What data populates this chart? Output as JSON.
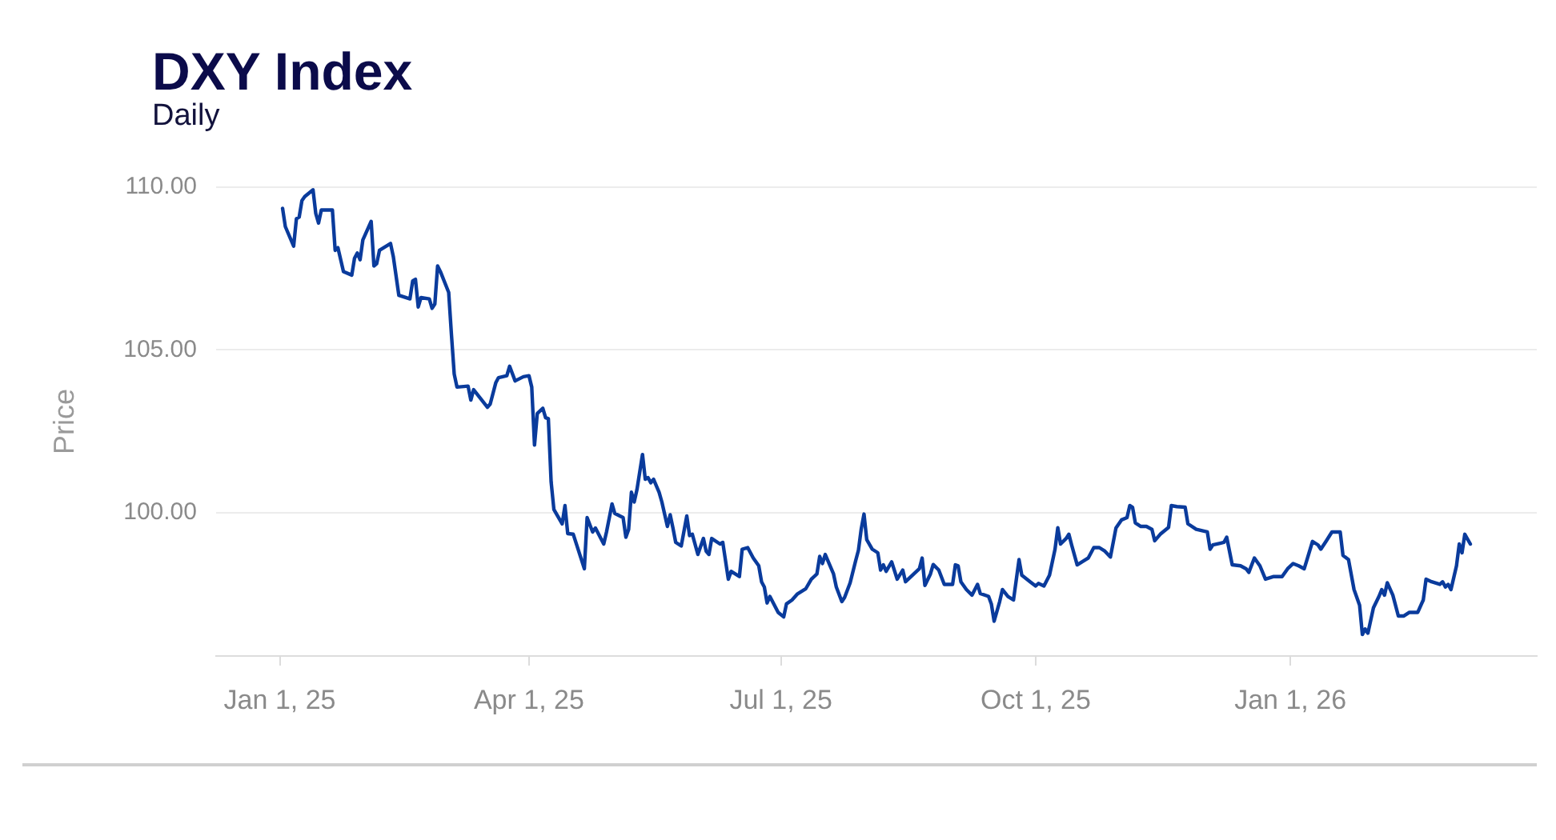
{
  "chart_data": {
    "type": "line",
    "title": "DXY Index",
    "subtitle": "Daily",
    "ylabel": "Price",
    "x": [
      "2025-01-02",
      "2025-01-03",
      "2025-01-06",
      "2025-01-07",
      "2025-01-08",
      "2025-01-09",
      "2025-01-10",
      "2025-01-13",
      "2025-01-14",
      "2025-01-15",
      "2025-01-16",
      "2025-01-20",
      "2025-01-21",
      "2025-01-22",
      "2025-01-24",
      "2025-01-27",
      "2025-01-28",
      "2025-01-29",
      "2025-01-30",
      "2025-01-31",
      "2025-02-03",
      "2025-02-04",
      "2025-02-05",
      "2025-02-06",
      "2025-02-10",
      "2025-02-11",
      "2025-02-13",
      "2025-02-17",
      "2025-02-18",
      "2025-02-19",
      "2025-02-20",
      "2025-02-21",
      "2025-02-24",
      "2025-02-25",
      "2025-02-26",
      "2025-02-27",
      "2025-02-28",
      "2025-03-03",
      "2025-03-04",
      "2025-03-05",
      "2025-03-06",
      "2025-03-10",
      "2025-03-11",
      "2025-03-12",
      "2025-03-17",
      "2025-03-18",
      "2025-03-20",
      "2025-03-21",
      "2025-03-24",
      "2025-03-25",
      "2025-03-27",
      "2025-03-30",
      "2025-04-01",
      "2025-04-02",
      "2025-04-03",
      "2025-04-04",
      "2025-04-06",
      "2025-04-07",
      "2025-04-08",
      "2025-04-09",
      "2025-04-10",
      "2025-04-13",
      "2025-04-14",
      "2025-04-15",
      "2025-04-17",
      "2025-04-21",
      "2025-04-22",
      "2025-04-24",
      "2025-04-25",
      "2025-04-28",
      "2025-04-29",
      "2025-05-01",
      "2025-05-02",
      "2025-05-05",
      "2025-05-06",
      "2025-05-07",
      "2025-05-08",
      "2025-05-09",
      "2025-05-10",
      "2025-05-12",
      "2025-05-13",
      "2025-05-14",
      "2025-05-15",
      "2025-05-16",
      "2025-05-18",
      "2025-05-19",
      "2025-05-21",
      "2025-05-22",
      "2025-05-23",
      "2025-05-24",
      "2025-05-26",
      "2025-05-28",
      "2025-05-29",
      "2025-05-30",
      "2025-06-01",
      "2025-06-03",
      "2025-06-04",
      "2025-06-05",
      "2025-06-06",
      "2025-06-09",
      "2025-06-10",
      "2025-06-12",
      "2025-06-13",
      "2025-06-16",
      "2025-06-17",
      "2025-06-19",
      "2025-06-21",
      "2025-06-23",
      "2025-06-24",
      "2025-06-25",
      "2025-06-26",
      "2025-06-27",
      "2025-06-30",
      "2025-07-02",
      "2025-07-03",
      "2025-07-05",
      "2025-07-07",
      "2025-07-10",
      "2025-07-12",
      "2025-07-14",
      "2025-07-15",
      "2025-07-16",
      "2025-07-17",
      "2025-07-20",
      "2025-07-21",
      "2025-07-23",
      "2025-07-24",
      "2025-07-26",
      "2025-07-28",
      "2025-07-29",
      "2025-07-30",
      "2025-07-31",
      "2025-08-01",
      "2025-08-03",
      "2025-08-05",
      "2025-08-06",
      "2025-08-07",
      "2025-08-08",
      "2025-08-10",
      "2025-08-12",
      "2025-08-14",
      "2025-08-15",
      "2025-08-18",
      "2025-08-20",
      "2025-08-21",
      "2025-08-22",
      "2025-08-24",
      "2025-08-25",
      "2025-08-27",
      "2025-08-29",
      "2025-09-01",
      "2025-09-02",
      "2025-09-03",
      "2025-09-04",
      "2025-09-06",
      "2025-09-08",
      "2025-09-10",
      "2025-09-11",
      "2025-09-14",
      "2025-09-15",
      "2025-09-16",
      "2025-09-18",
      "2025-09-19",
      "2025-09-21",
      "2025-09-23",
      "2025-09-25",
      "2025-09-26",
      "2025-09-29",
      "2025-10-01",
      "2025-10-02",
      "2025-10-04",
      "2025-10-06",
      "2025-10-08",
      "2025-10-09",
      "2025-10-10",
      "2025-10-12",
      "2025-10-13",
      "2025-10-14",
      "2025-10-16",
      "2025-10-19",
      "2025-10-20",
      "2025-10-22",
      "2025-10-24",
      "2025-10-26",
      "2025-10-28",
      "2025-10-30",
      "2025-11-01",
      "2025-11-03",
      "2025-11-04",
      "2025-11-05",
      "2025-11-06",
      "2025-11-08",
      "2025-11-10",
      "2025-11-12",
      "2025-11-13",
      "2025-11-15",
      "2025-11-18",
      "2025-11-19",
      "2025-11-21",
      "2025-11-24",
      "2025-11-25",
      "2025-11-28",
      "2025-12-02",
      "2025-12-03",
      "2025-12-04",
      "2025-12-08",
      "2025-12-09",
      "2025-12-11",
      "2025-12-14",
      "2025-12-16",
      "2025-12-17",
      "2025-12-19",
      "2025-12-21",
      "2025-12-23",
      "2025-12-26",
      "2025-12-29",
      "2025-12-31",
      "2026-01-02",
      "2026-01-04",
      "2026-01-06",
      "2026-01-07",
      "2026-01-09",
      "2026-01-11",
      "2026-01-12",
      "2026-01-14",
      "2026-01-16",
      "2026-01-19",
      "2026-01-20",
      "2026-01-22",
      "2026-01-24",
      "2026-01-26",
      "2026-01-27",
      "2026-01-28",
      "2026-01-29",
      "2026-01-31",
      "2026-02-02",
      "2026-02-03",
      "2026-02-04",
      "2026-02-05",
      "2026-02-07",
      "2026-02-09",
      "2026-02-11",
      "2026-02-13",
      "2026-02-16",
      "2026-02-18",
      "2026-02-19",
      "2026-02-21",
      "2026-02-24",
      "2026-02-25",
      "2026-02-26",
      "2026-02-27",
      "2026-02-28",
      "2026-03-02",
      "2026-03-03",
      "2026-03-04",
      "2026-03-05",
      "2026-03-07"
    ],
    "series": [
      {
        "color": "#0a3b9c",
        "values": [
          109.35,
          108.79,
          108.19,
          109.03,
          109.08,
          109.59,
          109.71,
          109.92,
          109.19,
          108.9,
          109.3,
          109.3,
          108.06,
          108.14,
          107.41,
          107.3,
          107.82,
          107.98,
          107.77,
          108.38,
          108.95,
          107.58,
          107.65,
          108.06,
          108.27,
          107.87,
          106.68,
          106.57,
          107.12,
          107.17,
          106.32,
          106.61,
          106.57,
          106.28,
          106.41,
          107.58,
          107.41,
          106.77,
          105.47,
          104.26,
          103.86,
          103.89,
          103.46,
          103.78,
          103.24,
          103.34,
          103.99,
          104.15,
          104.21,
          104.5,
          104.05,
          104.18,
          104.21,
          103.86,
          102.08,
          103.05,
          103.21,
          102.92,
          102.89,
          100.95,
          100.1,
          99.66,
          100.22,
          99.36,
          99.34,
          98.28,
          99.85,
          99.41,
          99.53,
          99.04,
          99.41,
          100.27,
          99.98,
          99.85,
          99.25,
          99.49,
          100.63,
          100.33,
          100.71,
          101.79,
          101.03,
          101.08,
          100.92,
          101.03,
          100.63,
          100.33,
          99.58,
          99.94,
          99.53,
          99.09,
          98.98,
          99.9,
          99.3,
          99.34,
          98.72,
          99.21,
          98.82,
          98.72,
          99.21,
          99.04,
          99.09,
          97.96,
          98.2,
          98.04,
          98.88,
          98.93,
          98.61,
          98.37,
          97.88,
          97.72,
          97.23,
          97.43,
          96.94,
          96.8,
          97.2,
          97.32,
          97.51,
          97.67,
          97.96,
          98.12,
          98.66,
          98.44,
          98.72,
          98.12,
          97.72,
          97.27,
          97.4,
          97.85,
          98.53,
          98.85,
          99.5,
          99.96,
          99.17,
          98.88,
          98.77,
          98.24,
          98.4,
          98.2,
          98.49,
          97.96,
          98.24,
          97.88,
          98.12,
          98.28,
          98.61,
          97.77,
          98.12,
          98.41,
          98.24,
          97.8,
          97.8,
          98.4,
          98.37,
          97.88,
          97.64,
          97.47,
          97.8,
          97.52,
          97.43,
          97.2,
          96.67,
          97.27,
          97.64,
          97.43,
          97.32,
          98.56,
          98.08,
          97.88,
          97.75,
          97.83,
          97.75,
          98.08,
          98.88,
          99.54,
          99.04,
          99.21,
          99.34,
          99.01,
          98.4,
          98.56,
          98.61,
          98.93,
          98.93,
          98.82,
          98.64,
          99.53,
          99.78,
          99.85,
          100.22,
          100.17,
          99.69,
          99.58,
          99.58,
          99.49,
          99.14,
          99.34,
          99.55,
          100.22,
          100.19,
          100.17,
          99.66,
          99.49,
          99.41,
          98.88,
          99.01,
          99.09,
          99.25,
          98.4,
          98.37,
          98.28,
          98.17,
          98.61,
          98.37,
          97.96,
          98.04,
          98.04,
          98.28,
          98.44,
          98.37,
          98.28,
          98.56,
          99.12,
          99.01,
          98.88,
          99.14,
          99.41,
          99.41,
          98.69,
          98.56,
          97.64,
          97.16,
          96.26,
          96.43,
          96.3,
          97.08,
          97.43,
          97.64,
          97.47,
          97.85,
          97.47,
          96.83,
          96.83,
          96.94,
          96.94,
          97.32,
          97.96,
          97.88,
          97.8,
          97.88,
          97.72,
          97.8,
          97.64,
          98.37,
          99.04,
          98.77,
          99.34,
          99.04
        ]
      }
    ],
    "xlim": [
      "2024-12-09",
      "2026-03-31"
    ],
    "xticks": [
      {
        "value": "2025-01-01",
        "label": "Jan 1, 25"
      },
      {
        "value": "2025-04-01",
        "label": "Apr 1, 25"
      },
      {
        "value": "2025-07-01",
        "label": "Jul 1, 25"
      },
      {
        "value": "2025-10-01",
        "label": "Oct 1, 25"
      },
      {
        "value": "2026-01-01",
        "label": "Jan 1, 26"
      }
    ],
    "ylim": [
      95.6,
      110
    ],
    "yticks": [
      {
        "value": 100,
        "label": "100.00"
      },
      {
        "value": 105,
        "label": "105.00"
      },
      {
        "value": 110,
        "label": "110.00"
      }
    ],
    "grid": "y",
    "marker": "none"
  }
}
